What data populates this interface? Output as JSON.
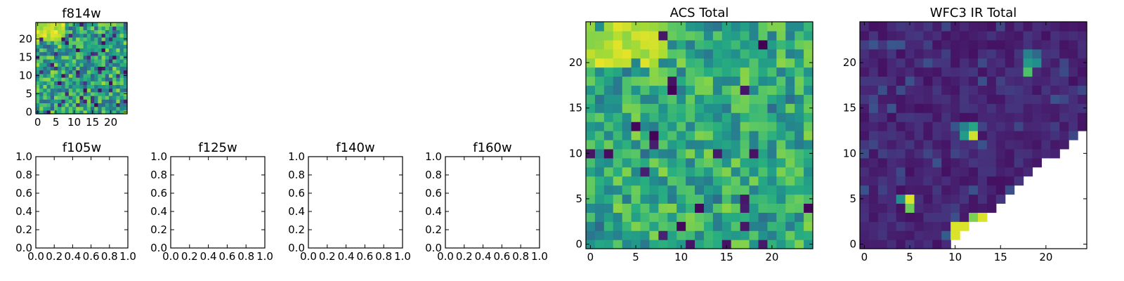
{
  "chart_data": [
    {
      "id": "f814w",
      "type": "heatmap",
      "title": "f814w",
      "colormap": "viridis",
      "xlim": [
        -0.5,
        24.5
      ],
      "ylim": [
        -0.5,
        24.5
      ],
      "xticks": [
        0,
        5,
        10,
        15,
        20
      ],
      "yticks": [
        0,
        5,
        10,
        15,
        20
      ],
      "grid": false,
      "size": [
        25,
        25
      ],
      "values_note": "per-pixel flux map; mostly high values with scattered low pixels"
    },
    {
      "id": "f105w",
      "type": "heatmap",
      "title": "f105w",
      "xlim": [
        0,
        1
      ],
      "ylim": [
        0,
        1
      ],
      "xticks": [
        "0.0",
        "0.2",
        "0.4",
        "0.6",
        "0.8",
        "1.0"
      ],
      "yticks": [
        "0.0",
        "0.2",
        "0.4",
        "0.6",
        "0.8",
        "1.0"
      ],
      "values": []
    },
    {
      "id": "f125w",
      "type": "heatmap",
      "title": "f125w",
      "xlim": [
        0,
        1
      ],
      "ylim": [
        0,
        1
      ],
      "xticks": [
        "0.0",
        "0.2",
        "0.4",
        "0.6",
        "0.8",
        "1.0"
      ],
      "yticks": [
        "0.0",
        "0.2",
        "0.4",
        "0.6",
        "0.8",
        "1.0"
      ],
      "values": []
    },
    {
      "id": "f140w",
      "type": "heatmap",
      "title": "f140w",
      "xlim": [
        0,
        1
      ],
      "ylim": [
        0,
        1
      ],
      "xticks": [
        "0.0",
        "0.2",
        "0.4",
        "0.6",
        "0.8",
        "1.0"
      ],
      "yticks": [
        "0.0",
        "0.2",
        "0.4",
        "0.6",
        "0.8",
        "1.0"
      ],
      "values": []
    },
    {
      "id": "f160w",
      "type": "heatmap",
      "title": "f160w",
      "xlim": [
        0,
        1
      ],
      "ylim": [
        0,
        1
      ],
      "xticks": [
        "0.0",
        "0.2",
        "0.4",
        "0.6",
        "0.8",
        "1.0"
      ],
      "yticks": [
        "0.0",
        "0.2",
        "0.4",
        "0.6",
        "0.8",
        "1.0"
      ],
      "values": []
    },
    {
      "id": "acs_total",
      "type": "heatmap",
      "title": "ACS Total",
      "colormap": "viridis",
      "xlim": [
        -0.5,
        24.5
      ],
      "ylim": [
        -0.5,
        24.5
      ],
      "xticks": [
        0,
        5,
        10,
        15,
        20
      ],
      "yticks": [
        0,
        5,
        10,
        15,
        20
      ],
      "grid": false,
      "size": [
        25,
        25
      ]
    },
    {
      "id": "wfc3_ir_total",
      "type": "heatmap",
      "title": "WFC3 IR Total",
      "colormap": "viridis",
      "xlim": [
        -0.5,
        24.5
      ],
      "ylim": [
        -0.5,
        24.5
      ],
      "xticks": [
        0,
        5,
        10,
        15,
        20
      ],
      "yticks": [
        0,
        5,
        10,
        15,
        20
      ],
      "grid": false,
      "size": [
        25,
        25
      ],
      "bright_sources": [
        {
          "x": 5,
          "y": 4.5
        },
        {
          "x": 12,
          "y": 1.5
        },
        {
          "x": 10.5,
          "y": 1
        },
        {
          "x": 12,
          "y": 12.5
        },
        {
          "x": 19,
          "y": 20
        }
      ],
      "masked_region": "lower-right corner (no data)"
    }
  ],
  "colors": {
    "viridis_low": "#440154",
    "viridis_mid": "#21918c",
    "viridis_high": "#fde725"
  }
}
